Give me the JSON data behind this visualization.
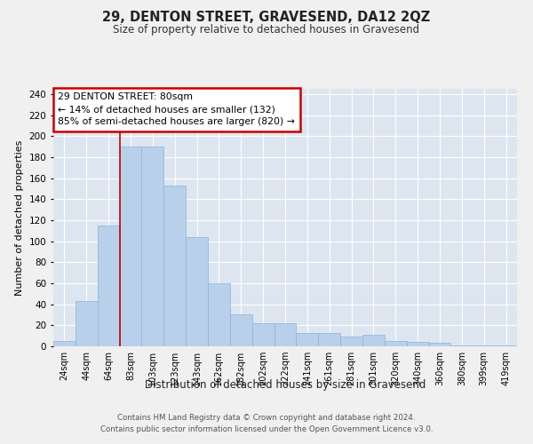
{
  "title": "29, DENTON STREET, GRAVESEND, DA12 2QZ",
  "subtitle": "Size of property relative to detached houses in Gravesend",
  "xlabel": "Distribution of detached houses by size in Gravesend",
  "ylabel": "Number of detached properties",
  "categories": [
    "24sqm",
    "44sqm",
    "64sqm",
    "83sqm",
    "103sqm",
    "123sqm",
    "143sqm",
    "162sqm",
    "182sqm",
    "202sqm",
    "222sqm",
    "241sqm",
    "261sqm",
    "281sqm",
    "301sqm",
    "320sqm",
    "340sqm",
    "360sqm",
    "380sqm",
    "399sqm",
    "419sqm"
  ],
  "values": [
    5,
    43,
    115,
    190,
    190,
    153,
    104,
    60,
    30,
    22,
    22,
    13,
    13,
    9,
    11,
    5,
    4,
    3,
    1,
    1,
    1
  ],
  "bar_color": "#b8d0ea",
  "bar_edge_color": "#8ab4d8",
  "red_line_x": 3,
  "ylim": [
    0,
    245
  ],
  "yticks": [
    0,
    20,
    40,
    60,
    80,
    100,
    120,
    140,
    160,
    180,
    200,
    220,
    240
  ],
  "annotation_title": "29 DENTON STREET: 80sqm",
  "annotation_line1": "← 14% of detached houses are smaller (132)",
  "annotation_line2": "85% of semi-detached houses are larger (820) →",
  "annotation_box_color": "#cc0000",
  "fig_bg_color": "#f0f0f0",
  "plot_bg_color": "#dde6f0",
  "grid_color": "#ffffff",
  "footer_line1": "Contains HM Land Registry data © Crown copyright and database right 2024.",
  "footer_line2": "Contains public sector information licensed under the Open Government Licence v3.0."
}
